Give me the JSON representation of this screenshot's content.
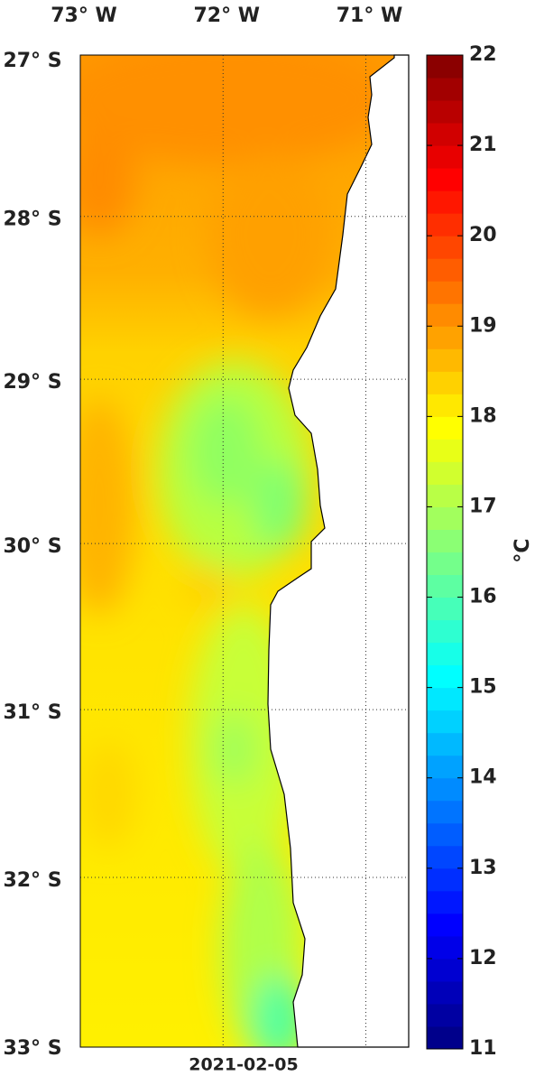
{
  "map": {
    "lon_range": [
      -73,
      -70.7
    ],
    "lat_range": [
      -33,
      -27
    ],
    "lon_ticks": [
      {
        "value": -73,
        "label": "73° W"
      },
      {
        "value": -72,
        "label": "72° W"
      },
      {
        "value": -71,
        "label": "71° W"
      }
    ],
    "lat_ticks": [
      {
        "value": -27,
        "label": "27° S"
      },
      {
        "value": -28,
        "label": "28° S"
      },
      {
        "value": -29,
        "label": "29° S"
      },
      {
        "value": -30,
        "label": "30° S"
      },
      {
        "value": -31,
        "label": "31° S"
      },
      {
        "value": -32,
        "label": "32° S"
      },
      {
        "value": -33,
        "label": "33° S"
      }
    ],
    "date": "2021-02-05"
  },
  "colorbar": {
    "lim": [
      11,
      22
    ],
    "ticks": [
      11,
      12,
      13,
      14,
      15,
      16,
      17,
      18,
      19,
      20,
      21,
      22
    ],
    "unit": "°C"
  }
}
